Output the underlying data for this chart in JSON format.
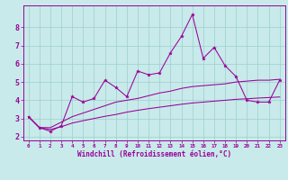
{
  "x": [
    0,
    1,
    2,
    3,
    4,
    5,
    6,
    7,
    8,
    9,
    10,
    11,
    12,
    13,
    14,
    15,
    16,
    17,
    18,
    19,
    20,
    21,
    22,
    23
  ],
  "y_main": [
    3.1,
    2.5,
    2.3,
    2.6,
    4.2,
    3.9,
    4.1,
    5.1,
    4.7,
    4.2,
    5.6,
    5.4,
    5.5,
    6.6,
    7.5,
    8.7,
    6.3,
    6.9,
    5.9,
    5.3,
    4.0,
    3.9,
    3.9,
    5.1
  ],
  "y_upper": [
    3.1,
    2.5,
    2.5,
    2.8,
    3.1,
    3.3,
    3.5,
    3.7,
    3.9,
    4.0,
    4.1,
    4.25,
    4.4,
    4.5,
    4.65,
    4.75,
    4.8,
    4.85,
    4.9,
    5.0,
    5.05,
    5.1,
    5.1,
    5.15
  ],
  "y_lower": [
    3.1,
    2.5,
    2.4,
    2.55,
    2.75,
    2.88,
    3.0,
    3.12,
    3.22,
    3.35,
    3.45,
    3.54,
    3.62,
    3.7,
    3.78,
    3.85,
    3.9,
    3.95,
    4.0,
    4.05,
    4.08,
    4.12,
    4.15,
    4.18
  ],
  "line_color": "#990099",
  "bg_color": "#c8eaea",
  "grid_color": "#9ecece",
  "ylim": [
    1.8,
    9.2
  ],
  "xlim": [
    -0.5,
    23.5
  ],
  "yticks": [
    2,
    3,
    4,
    5,
    6,
    7,
    8
  ],
  "xticks": [
    0,
    1,
    2,
    3,
    4,
    5,
    6,
    7,
    8,
    9,
    10,
    11,
    12,
    13,
    14,
    15,
    16,
    17,
    18,
    19,
    20,
    21,
    22,
    23
  ],
  "xlabel": "Windchill (Refroidissement éolien,°C)",
  "marker": "*",
  "tick_fontsize_x": 4.2,
  "tick_fontsize_y": 6.0,
  "xlabel_fontsize": 5.5,
  "linewidth": 0.75,
  "markersize": 2.8
}
